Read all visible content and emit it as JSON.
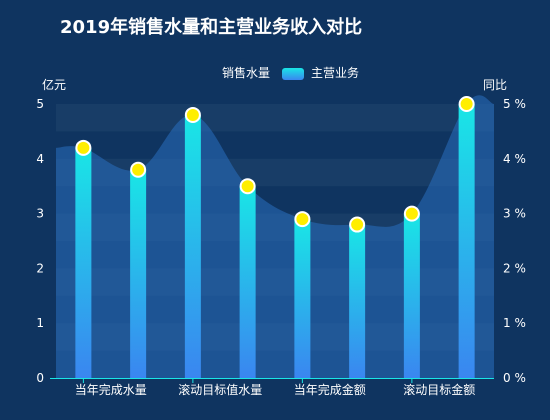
{
  "chart_data": {
    "type": "bar",
    "title": "2019年销售水量和主营业务收入对比",
    "categories": [
      "当年完成水量",
      "",
      "滚动目标值水量",
      "",
      "当年完成金额",
      "",
      "滚动目标金额",
      ""
    ],
    "x_tick_labels_shown": [
      "当年完成水量",
      "滚动目标值水量",
      "当年完成金额",
      "滚动目标金额"
    ],
    "series": [
      {
        "name": "销售水量",
        "kind": "area",
        "axis": "right",
        "values": [
          4.2,
          3.8,
          4.8,
          3.5,
          2.9,
          2.8,
          3.0,
          5.0
        ]
      },
      {
        "name": "主营业务",
        "kind": "bar",
        "axis": "left",
        "values": [
          4.2,
          3.8,
          4.8,
          3.5,
          2.9,
          2.8,
          3.0,
          5.0
        ]
      }
    ],
    "y_left": {
      "label": "亿元",
      "min": 0,
      "max": 5,
      "ticks": [
        "0",
        "1",
        "2",
        "3",
        "4",
        "5"
      ]
    },
    "y_right": {
      "label": "同比",
      "min": 0,
      "max": 5,
      "ticks": [
        "0 %",
        "1 %",
        "2 %",
        "3 %",
        "4 %",
        "5 %"
      ]
    },
    "legend_position": "top-center",
    "grid": "horizontal bands",
    "colors": {
      "background": "#0f3460",
      "band": "#1a3f68",
      "bar_top": "#19e6e6",
      "bar_bottom": "#3a86f0",
      "area_fill": "#2a6fc0",
      "marker_fill": "#ffee00",
      "marker_stroke": "#ffffff",
      "axis_line": "#19e6e6"
    }
  }
}
